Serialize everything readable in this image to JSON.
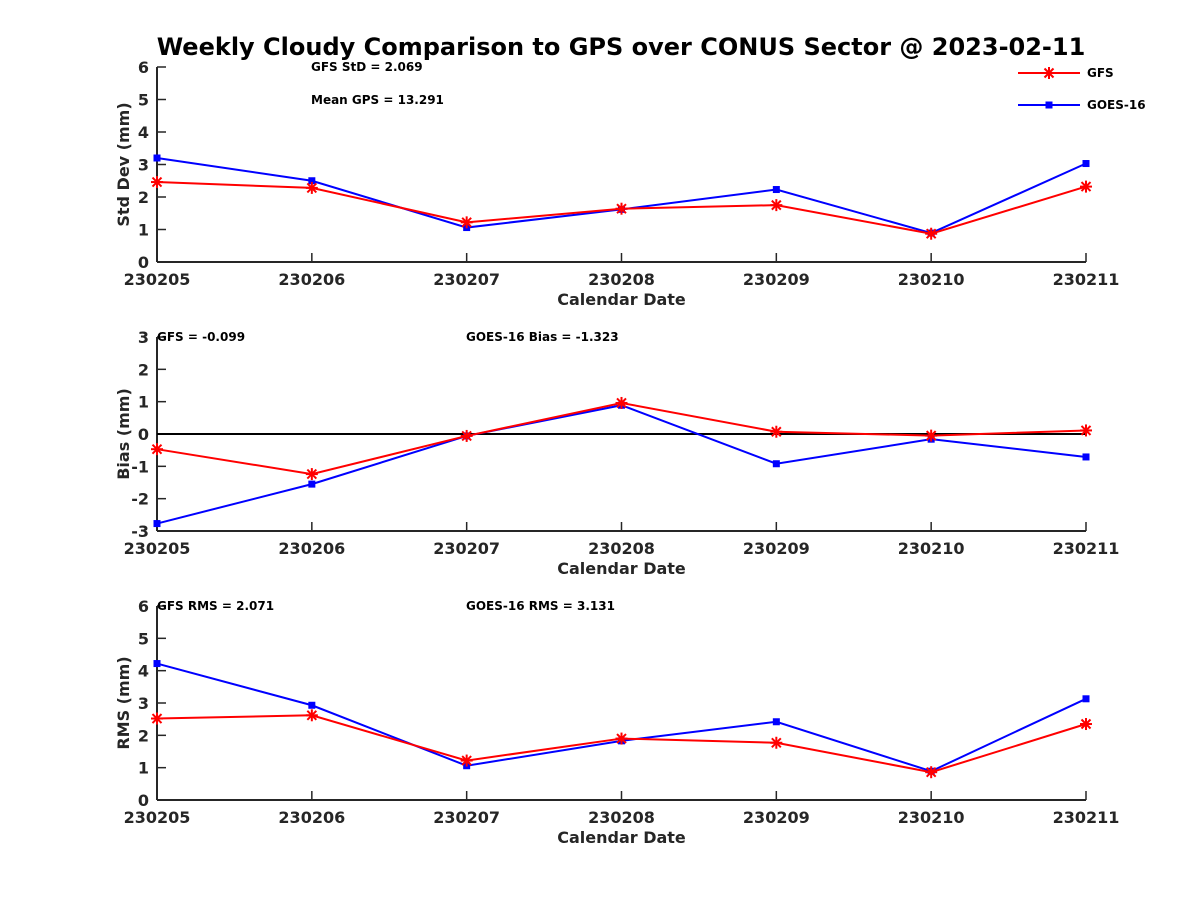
{
  "chart_data": {
    "title": "Weekly Cloudy Comparison to GPS over CONUS Sector @ 2023-02-11",
    "type": "line",
    "colors": {
      "GFS": "#ff0000",
      "GOES-16": "#0000ff",
      "zero_line": "#000000"
    },
    "legend": {
      "placement": "top-right",
      "entries": [
        {
          "name": "GFS",
          "marker": "asterisk",
          "color": "#ff0000"
        },
        {
          "name": "GOES-16",
          "marker": "square",
          "color": "#0000ff"
        }
      ]
    },
    "panels": [
      {
        "id": "std",
        "ylabel": "Std Dev (mm)",
        "xlabel": "Calendar Date",
        "ylim": [
          0,
          6
        ],
        "yticks": [
          "0",
          "1",
          "2",
          "3",
          "4",
          "5",
          "6"
        ],
        "categories": [
          "230205",
          "230206",
          "230207",
          "230208",
          "230209",
          "230210",
          "230211"
        ],
        "series": [
          {
            "name": "GFS",
            "values": [
              2.46,
              2.28,
              1.22,
              1.64,
              1.75,
              0.87,
              2.32
            ]
          },
          {
            "name": "GOES-16",
            "values": [
              3.2,
              2.5,
              1.06,
              1.62,
              2.23,
              0.89,
              3.03
            ]
          }
        ],
        "annotations": [
          {
            "text": "GFS StD = 2.069"
          },
          {
            "text": "Mean GPS = 13.291"
          }
        ]
      },
      {
        "id": "bias",
        "ylabel": "Bias (mm)",
        "xlabel": "Calendar Date",
        "ylim": [
          -3,
          3
        ],
        "yticks": [
          "-3",
          "-2",
          "-1",
          "0",
          "1",
          "2",
          "3"
        ],
        "zero_line": true,
        "categories": [
          "230205",
          "230206",
          "230207",
          "230208",
          "230209",
          "230210",
          "230211"
        ],
        "series": [
          {
            "name": "GFS",
            "values": [
              -0.47,
              -1.24,
              -0.06,
              0.96,
              0.07,
              -0.05,
              0.11
            ]
          },
          {
            "name": "GOES-16",
            "values": [
              -2.77,
              -1.55,
              -0.06,
              0.89,
              -0.92,
              -0.16,
              -0.71
            ]
          }
        ],
        "annotations": [
          {
            "text": "GFS = -0.099"
          },
          {
            "text": "GOES-16 Bias  = -1.323"
          }
        ]
      },
      {
        "id": "rms",
        "ylabel": "RMS (mm)",
        "xlabel": "Calendar Date",
        "ylim": [
          0,
          6
        ],
        "yticks": [
          "0",
          "1",
          "2",
          "3",
          "4",
          "5",
          "6"
        ],
        "categories": [
          "230205",
          "230206",
          "230207",
          "230208",
          "230209",
          "230210",
          "230211"
        ],
        "series": [
          {
            "name": "GFS",
            "values": [
              2.52,
              2.62,
              1.22,
              1.9,
              1.77,
              0.86,
              2.35
            ]
          },
          {
            "name": "GOES-16",
            "values": [
              4.22,
              2.93,
              1.06,
              1.83,
              2.42,
              0.89,
              3.13
            ]
          }
        ],
        "annotations": [
          {
            "text": "GFS RMS = 2.071"
          },
          {
            "text": "GOES-16 RMS = 3.131"
          }
        ]
      }
    ]
  }
}
